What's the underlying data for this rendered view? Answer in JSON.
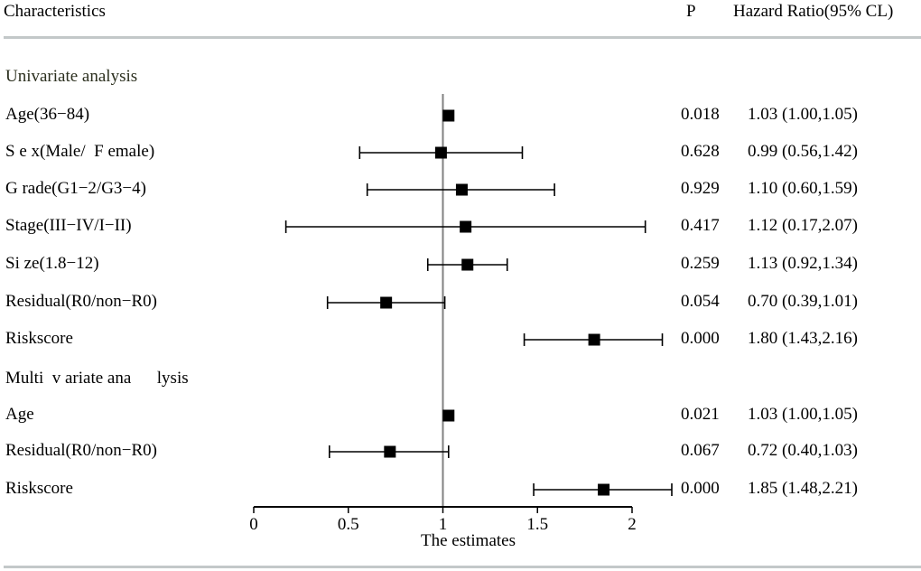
{
  "header": {
    "characteristics": "Characteristics",
    "p": "P",
    "hazard_ratio": "Hazard Ratio(95% CL)"
  },
  "sections": [
    {
      "label": "Univariate analysis"
    },
    {
      "label": "Multi  v ariate ana      lysis"
    }
  ],
  "chart_data": {
    "type": "forest",
    "xlabel": "The estimates",
    "xlim": [
      0,
      2
    ],
    "xticks": [
      0,
      0.5,
      1,
      1.5,
      2
    ],
    "xtick_labels": [
      "0",
      "0.5",
      "1",
      "1.5",
      "2"
    ],
    "reference_line": 1,
    "rows": [
      {
        "section": 0,
        "label": "Age(36−84)",
        "est": 1.03,
        "lo": 1.0,
        "hi": 1.05,
        "p": "0.018",
        "hr": "1.03 (1.00,1.05)"
      },
      {
        "section": 0,
        "label": "S e x(Male/  F emale)",
        "est": 0.99,
        "lo": 0.56,
        "hi": 1.42,
        "p": "0.628",
        "hr": "0.99 (0.56,1.42)"
      },
      {
        "section": 0,
        "label": "G rade(G1−2/G3−4)",
        "est": 1.1,
        "lo": 0.6,
        "hi": 1.59,
        "p": "0.929",
        "hr": "1.10 (0.60,1.59)"
      },
      {
        "section": 0,
        "label": "Stage(III−IV/I−II)",
        "est": 1.12,
        "lo": 0.17,
        "hi": 2.07,
        "p": "0.417",
        "hr": "1.12 (0.17,2.07)"
      },
      {
        "section": 0,
        "label": "Si ze(1.8−12)",
        "est": 1.13,
        "lo": 0.92,
        "hi": 1.34,
        "p": "0.259",
        "hr": "1.13 (0.92,1.34)"
      },
      {
        "section": 0,
        "label": "Residual(R0/non−R0)",
        "est": 0.7,
        "lo": 0.39,
        "hi": 1.01,
        "p": "0.054",
        "hr": "0.70 (0.39,1.01)"
      },
      {
        "section": 0,
        "label": "Riskscore",
        "est": 1.8,
        "lo": 1.43,
        "hi": 2.16,
        "p": "0.000",
        "hr": "1.80 (1.43,2.16)"
      },
      {
        "section": 1,
        "label": "Age",
        "est": 1.03,
        "lo": 1.0,
        "hi": 1.05,
        "p": "0.021",
        "hr": "1.03 (1.00,1.05)"
      },
      {
        "section": 1,
        "label": "Residual(R0/non−R0)",
        "est": 0.72,
        "lo": 0.4,
        "hi": 1.03,
        "p": "0.067",
        "hr": "0.72 (0.40,1.03)"
      },
      {
        "section": 1,
        "label": "Riskscore",
        "est": 1.85,
        "lo": 1.48,
        "hi": 2.21,
        "p": "0.000",
        "hr": "1.85 (1.48,2.21)"
      }
    ]
  }
}
